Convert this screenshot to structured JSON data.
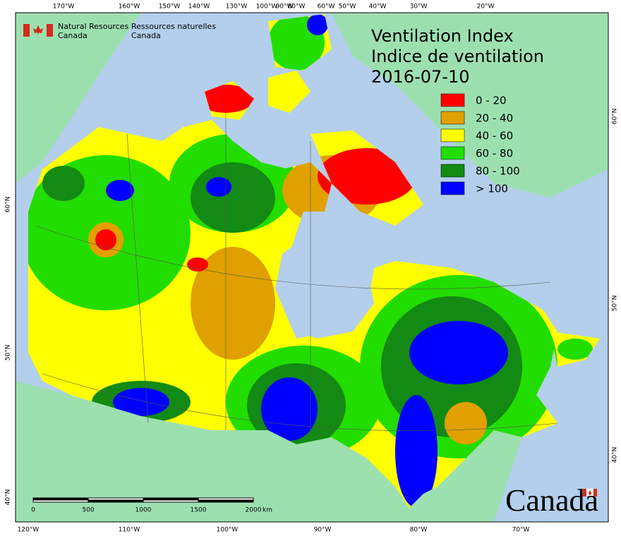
{
  "agency_en": [
    "Natural Resources",
    "Canada"
  ],
  "agency_fr": [
    "Ressources naturelles",
    "Canada"
  ],
  "title": [
    "Ventilation Index",
    "Indice de ventilation"
  ],
  "date": "2016-07-10",
  "legend": [
    {
      "label": "0 - 20",
      "color": "#ff0000"
    },
    {
      "label": "20 - 40",
      "color": "#e0a000"
    },
    {
      "label": "40 - 60",
      "color": "#ffff00"
    },
    {
      "label": "60 - 80",
      "color": "#22dd00"
    },
    {
      "label": "80 - 100",
      "color": "#138a13"
    },
    {
      "label": "> 100",
      "color": "#0000ff"
    }
  ],
  "top_labels": [
    "170°W",
    "160°W",
    "150°W",
    "140°W",
    "130°W",
    "100°W",
    "90°W",
    "80°W",
    "60°W",
    "50°W",
    "40°W",
    "30°W",
    "20°W"
  ],
  "bottom_labels": [
    "120°W",
    "110°W",
    "100°W",
    "90°W",
    "80°W",
    "70°W"
  ],
  "left_labels": [
    "60°N",
    "50°N",
    "40°N"
  ],
  "right_labels": [
    "60°N",
    "50°N",
    "40°N"
  ],
  "scale_labels": [
    "0",
    "500",
    "1000",
    "1500",
    "2000"
  ],
  "scale_unit": "km",
  "wordmark": "Canada"
}
